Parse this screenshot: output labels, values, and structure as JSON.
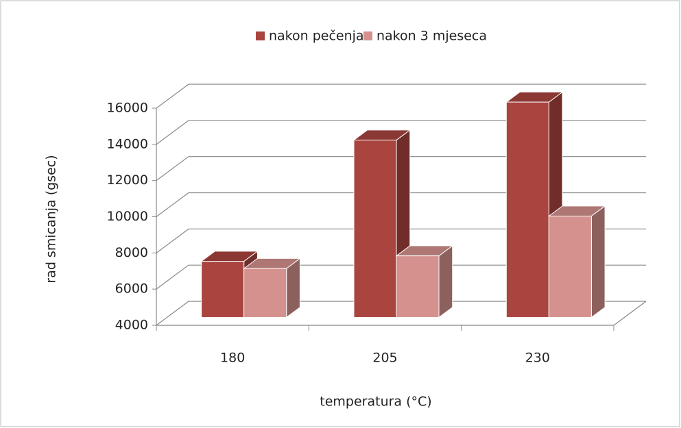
{
  "chart_data": {
    "type": "bar3d",
    "x_label": "temperatura (°C)",
    "y_label": "rad smicanja (gsec)",
    "categories": [
      "180",
      "205",
      "230"
    ],
    "series": [
      {
        "name": "nakon pečenja",
        "color": "#a9443f",
        "values": [
          7100,
          13800,
          15900
        ]
      },
      {
        "name": "nakon 3 mjeseca",
        "color": "#d4918d",
        "values": [
          6700,
          7400,
          9600
        ]
      }
    ],
    "ylim": [
      4000,
      16000
    ],
    "yticks": [
      4000,
      6000,
      8000,
      10000,
      12000,
      14000,
      16000
    ],
    "grid": true,
    "legend": "top"
  }
}
